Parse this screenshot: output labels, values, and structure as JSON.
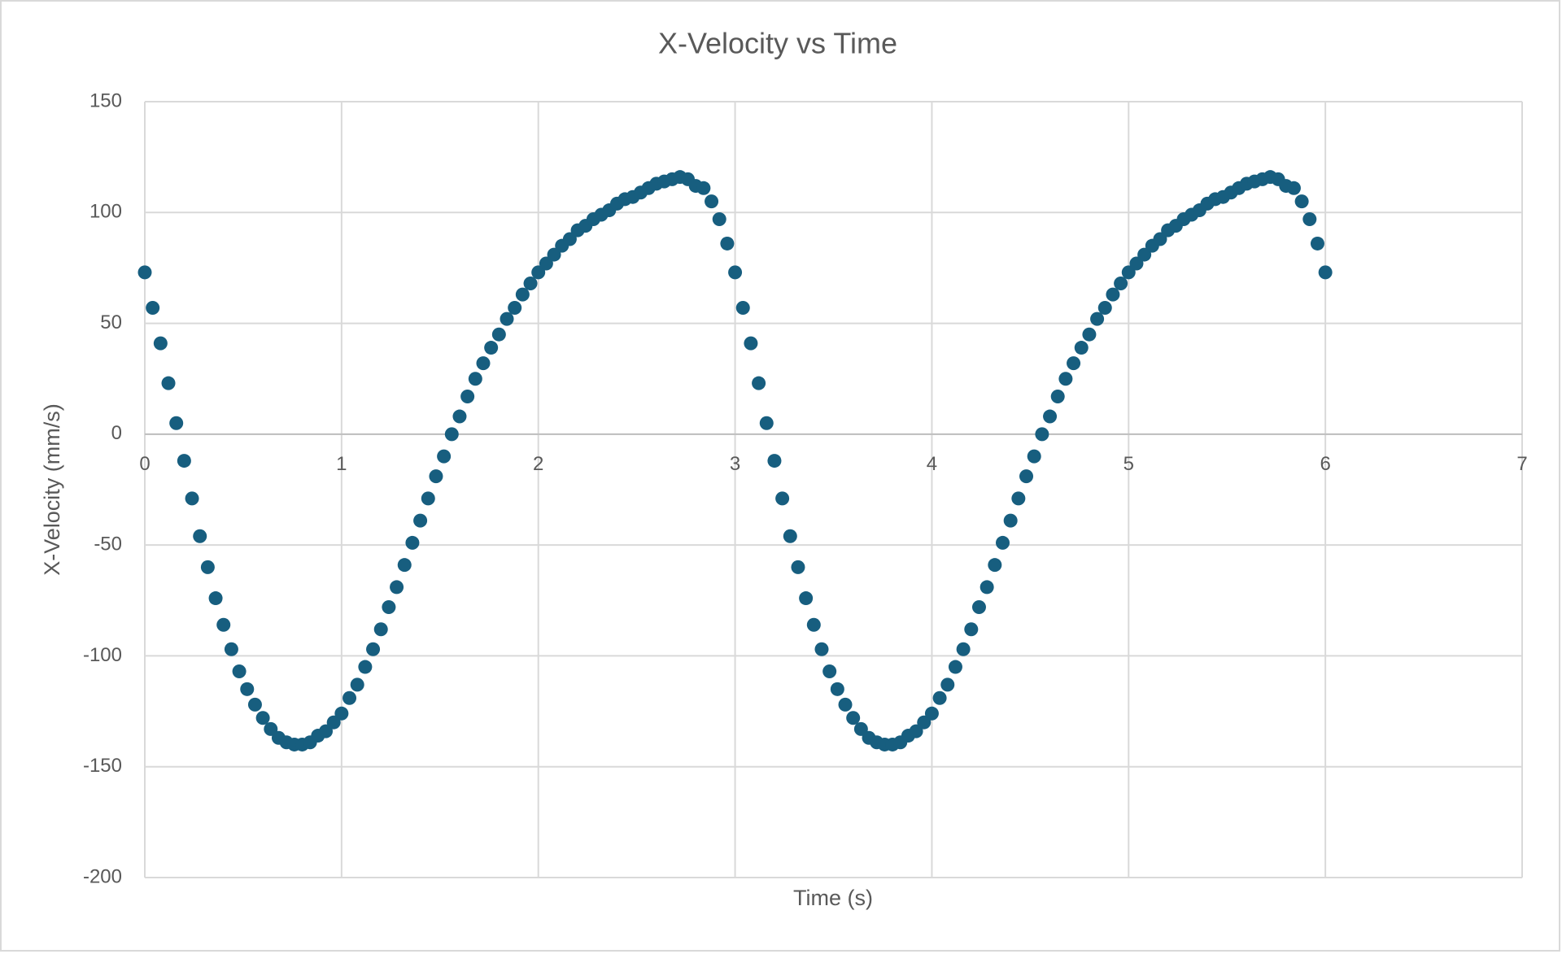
{
  "chart_data": {
    "type": "scatter",
    "title": "X-Velocity vs Time",
    "x_label": "Time (s)",
    "y_label": "X-Velocity (mm/s)",
    "series": [
      {
        "color": "#175e7f",
        "x": [
          0,
          0.04,
          0.08,
          0.12,
          0.16,
          0.2,
          0.24,
          0.28,
          0.32,
          0.36,
          0.4,
          0.44,
          0.48,
          0.52,
          0.56,
          0.6,
          0.64,
          0.68,
          0.72,
          0.76,
          0.8,
          0.84,
          0.88,
          0.92,
          0.96,
          1,
          1.04,
          1.08,
          1.12,
          1.16,
          1.2,
          1.24,
          1.28,
          1.32,
          1.36,
          1.4,
          1.44,
          1.48,
          1.52,
          1.56,
          1.6,
          1.64,
          1.68,
          1.72,
          1.76,
          1.8,
          1.84,
          1.88,
          1.92,
          1.96,
          2,
          2.04,
          2.08,
          2.12,
          2.16,
          2.2,
          2.24,
          2.28,
          2.32,
          2.36,
          2.4,
          2.44,
          2.48,
          2.52,
          2.56,
          2.6,
          2.64,
          2.68,
          2.72,
          2.76,
          2.8,
          2.84,
          2.88,
          2.92,
          2.96,
          3,
          3.04,
          3.08,
          3.12,
          3.16,
          3.2,
          3.24,
          3.28,
          3.32,
          3.36,
          3.4,
          3.44,
          3.48,
          3.52,
          3.56,
          3.6,
          3.64,
          3.68,
          3.72,
          3.76,
          3.8,
          3.84,
          3.88,
          3.92,
          3.96,
          4,
          4.04,
          4.08,
          4.12,
          4.16,
          4.2,
          4.24,
          4.28,
          4.32,
          4.36,
          4.4,
          4.44,
          4.48,
          4.52,
          4.56,
          4.6,
          4.64,
          4.68,
          4.72,
          4.76,
          4.8,
          4.84,
          4.88,
          4.92,
          4.96,
          5,
          5.04,
          5.08,
          5.12,
          5.16,
          5.2,
          5.24,
          5.28,
          5.32,
          5.36,
          5.4,
          5.44,
          5.48,
          5.52,
          5.56,
          5.6,
          5.64,
          5.68,
          5.72,
          5.76,
          5.8,
          5.84,
          5.88,
          5.92,
          5.96,
          6
        ],
        "values": [
          73,
          57,
          41,
          23,
          5,
          -12,
          -29,
          -46,
          -60,
          -74,
          -86,
          -97,
          -107,
          -115,
          -122,
          -128,
          -133,
          -137,
          -139,
          -140,
          -140,
          -139,
          -136,
          -134,
          -130,
          -126,
          -119,
          -113,
          -105,
          -97,
          -88,
          -78,
          -69,
          -59,
          -49,
          -39,
          -29,
          -19,
          -10,
          0,
          8,
          17,
          25,
          32,
          39,
          45,
          52,
          57,
          63,
          68,
          73,
          77,
          81,
          85,
          88,
          92,
          94,
          97,
          99,
          101,
          104,
          106,
          107,
          109,
          111,
          113,
          114,
          115,
          116,
          115,
          112,
          111,
          105,
          97,
          86,
          73,
          57,
          41,
          23,
          5,
          -12,
          -29,
          -46,
          -60,
          -74,
          -86,
          -97,
          -107,
          -115,
          -122,
          -128,
          -133,
          -137,
          -139,
          -140,
          -140,
          -139,
          -136,
          -134,
          -130,
          -126,
          -119,
          -113,
          -105,
          -97,
          -88,
          -78,
          -69,
          -59,
          -49,
          -39,
          -29,
          -19,
          -10,
          0,
          8,
          17,
          25,
          32,
          39,
          45,
          52,
          57,
          63,
          68,
          73,
          77,
          81,
          85,
          88,
          92,
          94,
          97,
          99,
          101,
          104,
          106,
          107,
          109,
          111,
          113,
          114,
          115,
          116,
          115,
          112,
          111,
          105,
          97,
          86,
          73
        ]
      }
    ],
    "xlim": [
      0,
      7
    ],
    "xticks": [
      0,
      1,
      2,
      3,
      4,
      5,
      6,
      7
    ],
    "ylim": [
      -200,
      150
    ],
    "yticks": [
      -200,
      -150,
      -100,
      -50,
      0,
      50,
      100,
      150
    ],
    "grid": true
  }
}
